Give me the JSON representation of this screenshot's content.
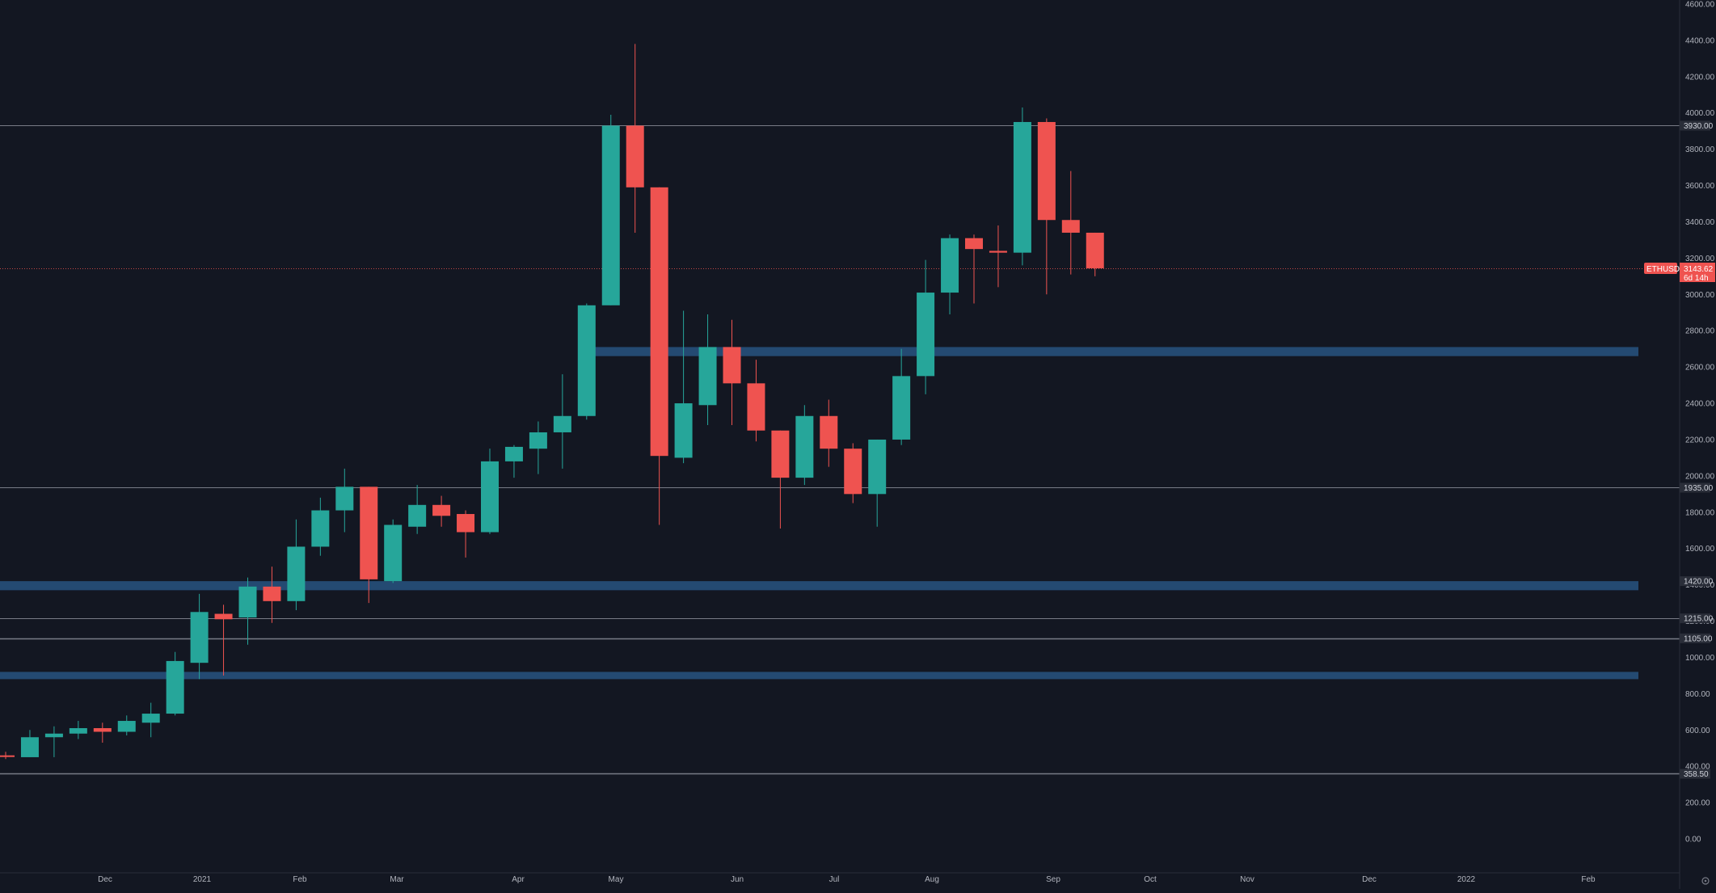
{
  "chart_data": {
    "type": "candlestick",
    "symbol": "ETHUSD",
    "interval": "weekly",
    "ylim": [
      -80,
      4600
    ],
    "y_ticks": [
      "0.00",
      "200.00",
      "400.00",
      "600.00",
      "800.00",
      "1000.00",
      "1200.00",
      "1400.00",
      "1600.00",
      "1800.00",
      "2000.00",
      "2200.00",
      "2400.00",
      "2600.00",
      "2800.00",
      "3000.00",
      "3200.00",
      "3400.00",
      "3600.00",
      "3800.00",
      "4000.00",
      "4200.00",
      "4400.00",
      "4600.00"
    ],
    "x_labels": [
      "Dec",
      "2021",
      "Feb",
      "Mar",
      "Apr",
      "May",
      "Jun",
      "Jul",
      "Aug",
      "Sep",
      "Oct",
      "Nov",
      "Dec",
      "2022",
      "Feb"
    ],
    "candles": [
      {
        "o": 460,
        "h": 480,
        "l": 440,
        "c": 455
      },
      {
        "o": 450,
        "h": 600,
        "l": 450,
        "c": 560
      },
      {
        "o": 560,
        "h": 620,
        "l": 450,
        "c": 580
      },
      {
        "o": 580,
        "h": 650,
        "l": 550,
        "c": 610
      },
      {
        "o": 610,
        "h": 640,
        "l": 530,
        "c": 590
      },
      {
        "o": 590,
        "h": 680,
        "l": 570,
        "c": 650
      },
      {
        "o": 640,
        "h": 750,
        "l": 560,
        "c": 690
      },
      {
        "o": 690,
        "h": 1030,
        "l": 680,
        "c": 980
      },
      {
        "o": 970,
        "h": 1350,
        "l": 880,
        "c": 1250
      },
      {
        "o": 1240,
        "h": 1290,
        "l": 900,
        "c": 1210
      },
      {
        "o": 1220,
        "h": 1440,
        "l": 1070,
        "c": 1390
      },
      {
        "o": 1390,
        "h": 1500,
        "l": 1190,
        "c": 1310
      },
      {
        "o": 1310,
        "h": 1760,
        "l": 1260,
        "c": 1610
      },
      {
        "o": 1610,
        "h": 1880,
        "l": 1560,
        "c": 1810
      },
      {
        "o": 1810,
        "h": 2040,
        "l": 1690,
        "c": 1940
      },
      {
        "o": 1940,
        "h": 1940,
        "l": 1300,
        "c": 1430
      },
      {
        "o": 1420,
        "h": 1760,
        "l": 1410,
        "c": 1730
      },
      {
        "o": 1720,
        "h": 1950,
        "l": 1680,
        "c": 1840
      },
      {
        "o": 1840,
        "h": 1890,
        "l": 1720,
        "c": 1780
      },
      {
        "o": 1790,
        "h": 1810,
        "l": 1550,
        "c": 1690
      },
      {
        "o": 1690,
        "h": 2150,
        "l": 1680,
        "c": 2080
      },
      {
        "o": 2080,
        "h": 2170,
        "l": 1990,
        "c": 2160
      },
      {
        "o": 2150,
        "h": 2300,
        "l": 2010,
        "c": 2240
      },
      {
        "o": 2240,
        "h": 2560,
        "l": 2040,
        "c": 2330
      },
      {
        "o": 2330,
        "h": 2950,
        "l": 2310,
        "c": 2940
      },
      {
        "o": 2940,
        "h": 3990,
        "l": 2940,
        "c": 3930
      },
      {
        "o": 3930,
        "h": 4380,
        "l": 3340,
        "c": 3590
      },
      {
        "o": 3590,
        "h": 3590,
        "l": 1730,
        "c": 2110
      },
      {
        "o": 2100,
        "h": 2910,
        "l": 2070,
        "c": 2400
      },
      {
        "o": 2390,
        "h": 2890,
        "l": 2280,
        "c": 2710
      },
      {
        "o": 2710,
        "h": 2860,
        "l": 2280,
        "c": 2510
      },
      {
        "o": 2510,
        "h": 2640,
        "l": 2190,
        "c": 2250
      },
      {
        "o": 2250,
        "h": 2250,
        "l": 1710,
        "c": 1990
      },
      {
        "o": 1990,
        "h": 2390,
        "l": 1950,
        "c": 2330
      },
      {
        "o": 2330,
        "h": 2420,
        "l": 2050,
        "c": 2150
      },
      {
        "o": 2150,
        "h": 2180,
        "l": 1850,
        "c": 1900
      },
      {
        "o": 1900,
        "h": 2200,
        "l": 1720,
        "c": 2200
      },
      {
        "o": 2200,
        "h": 2700,
        "l": 2170,
        "c": 2550
      },
      {
        "o": 2550,
        "h": 3190,
        "l": 2450,
        "c": 3010
      },
      {
        "o": 3010,
        "h": 3330,
        "l": 2890,
        "c": 3310
      },
      {
        "o": 3310,
        "h": 3330,
        "l": 2950,
        "c": 3250
      },
      {
        "o": 3240,
        "h": 3380,
        "l": 3040,
        "c": 3230
      },
      {
        "o": 3230,
        "h": 4030,
        "l": 3160,
        "c": 3950
      },
      {
        "o": 3950,
        "h": 3970,
        "l": 3000,
        "c": 3410
      },
      {
        "o": 3410,
        "h": 3680,
        "l": 3110,
        "c": 3340
      },
      {
        "o": 3340,
        "h": 3340,
        "l": 3100,
        "c": 3144
      }
    ],
    "horizontal_lines": [
      3930,
      1935,
      1215,
      1105,
      358.5
    ],
    "current_price_line": 3143.62,
    "zones": [
      {
        "from": 2660,
        "to": 2710,
        "start_index": 23.65
      },
      {
        "from": 1370,
        "to": 1420,
        "start_index": -1
      },
      {
        "from": 880,
        "to": 920,
        "start_index": -1
      }
    ],
    "price_tags": [
      {
        "value": 3930,
        "label": "3930.00"
      },
      {
        "value": 1935,
        "label": "1935.00"
      },
      {
        "value": 1420,
        "label": "1420.00"
      },
      {
        "value": 1215,
        "label": "1215.00"
      },
      {
        "value": 1105,
        "label": "1105.00"
      },
      {
        "value": 358.5,
        "label": "358.50"
      }
    ],
    "current_price": {
      "label": "3143.62",
      "countdown": "6d 14h",
      "symbol": "ETHUSD"
    }
  },
  "colors": {
    "background": "#131722",
    "up": "#26a69a",
    "down": "#ef5350",
    "zone": "#244a72",
    "level_line": "#787b86",
    "tag_bg": "#2a2e39",
    "grid_text": "#b2b5be",
    "axis_border": "#2a2e39"
  }
}
